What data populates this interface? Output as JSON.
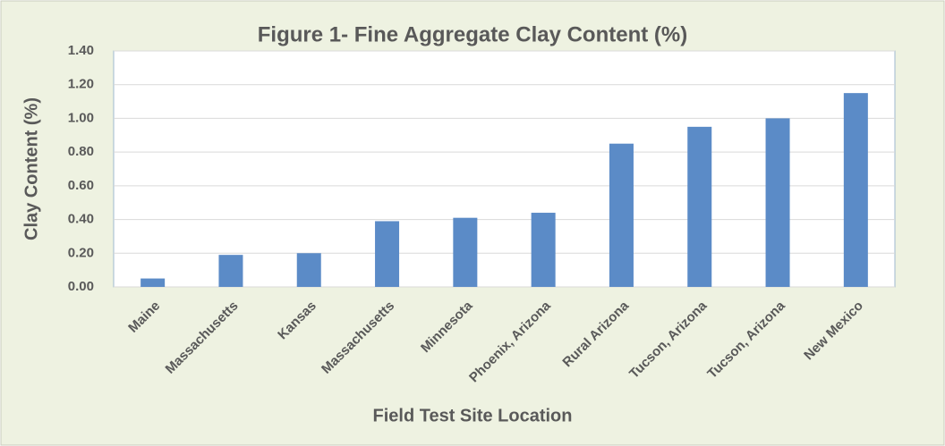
{
  "chart_data": {
    "type": "bar",
    "title": "Figure 1- Fine Aggregate Clay Content (%)",
    "x_label": "Field Test Site Location",
    "y_label": "Clay Content (%)",
    "categories": [
      "Maine",
      "Massachusetts",
      "Kansas",
      "Massachusetts",
      "Minnesota",
      "Phoenix, Arizona",
      "Rural Arizona",
      "Tucson, Arizona",
      "Tucson, Arizona",
      "New Mexico"
    ],
    "values": [
      0.05,
      0.19,
      0.2,
      0.39,
      0.41,
      0.44,
      0.85,
      0.95,
      1.0,
      1.15
    ],
    "color": "#5b8bc7",
    "ylim": [
      0,
      1.4
    ],
    "yticks": [
      {
        "value": 0,
        "label": "0.00"
      },
      {
        "value": 0.2,
        "label": "0.20"
      },
      {
        "value": 0.4,
        "label": "0.40"
      },
      {
        "value": 0.6,
        "label": "0.60"
      },
      {
        "value": 0.8,
        "label": "0.80"
      },
      {
        "value": 1.0,
        "label": "1.00"
      },
      {
        "value": 1.2,
        "label": "1.20"
      },
      {
        "value": 1.4,
        "label": "1.40"
      }
    ],
    "grid": true
  }
}
